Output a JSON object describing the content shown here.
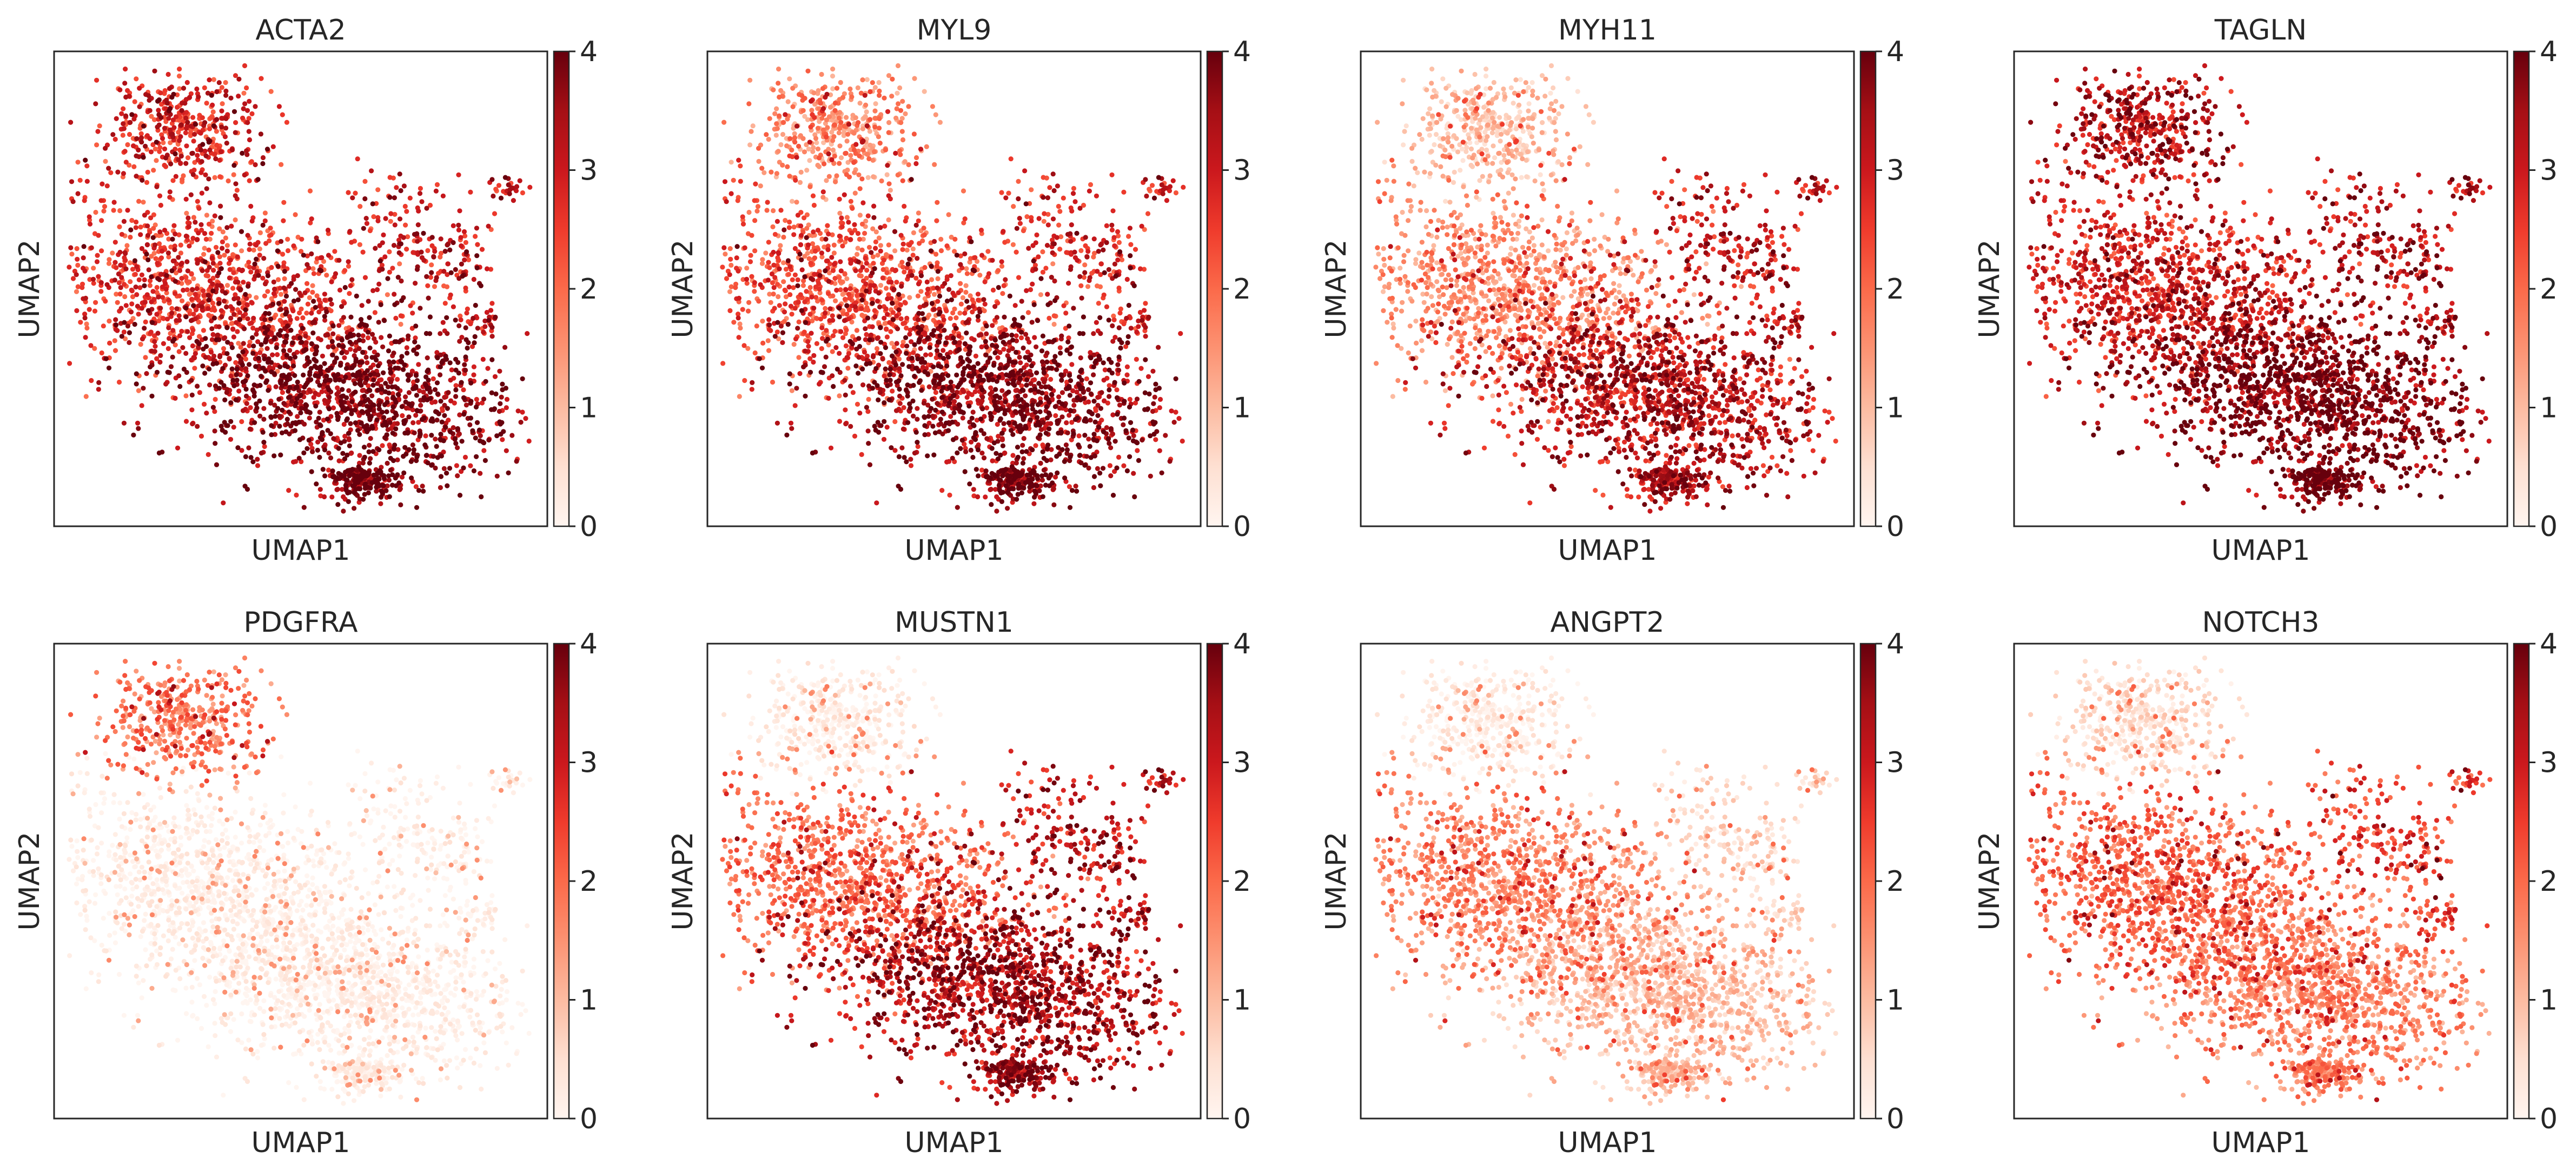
{
  "figure": {
    "colormap": "Reds",
    "colormap_stops": [
      "#fff5f0",
      "#fee0d2",
      "#fcbba1",
      "#fc9272",
      "#fb6a4a",
      "#ef3b2c",
      "#cb181d",
      "#a50f15",
      "#67000d"
    ]
  },
  "chart_data": [
    {
      "type": "scatter",
      "title": "ACTA2",
      "xlabel": "UMAP1",
      "ylabel": "UMAP2",
      "grid": false,
      "legend": "colorbar-right",
      "colorbar": {
        "range": [
          0,
          4
        ],
        "ticks": [
          "0",
          "1",
          "2",
          "3",
          "4"
        ]
      },
      "region_levels": {
        "upper_cluster": 2.8,
        "middle_cluster": 2.6,
        "lower_cluster": 3.7,
        "right_islands": 3.0
      }
    },
    {
      "type": "scatter",
      "title": "MYL9",
      "xlabel": "UMAP1",
      "ylabel": "UMAP2",
      "grid": false,
      "legend": "colorbar-right",
      "colorbar": {
        "range": [
          0,
          4
        ],
        "ticks": [
          "0",
          "1",
          "2",
          "3",
          "4"
        ]
      },
      "region_levels": {
        "upper_cluster": 1.6,
        "middle_cluster": 2.3,
        "lower_cluster": 3.6,
        "right_islands": 2.8
      }
    },
    {
      "type": "scatter",
      "title": "MYH11",
      "xlabel": "UMAP1",
      "ylabel": "UMAP2",
      "grid": false,
      "legend": "colorbar-right",
      "colorbar": {
        "range": [
          0,
          4
        ],
        "ticks": [
          "0",
          "1",
          "2",
          "3",
          "4"
        ]
      },
      "region_levels": {
        "upper_cluster": 0.9,
        "middle_cluster": 1.5,
        "lower_cluster": 3.1,
        "right_islands": 3.0
      }
    },
    {
      "type": "scatter",
      "title": "TAGLN",
      "xlabel": "UMAP1",
      "ylabel": "UMAP2",
      "grid": false,
      "legend": "colorbar-right",
      "colorbar": {
        "range": [
          0,
          4
        ],
        "ticks": [
          "0",
          "1",
          "2",
          "3",
          "4"
        ]
      },
      "region_levels": {
        "upper_cluster": 3.2,
        "middle_cluster": 2.8,
        "lower_cluster": 3.8,
        "right_islands": 3.2
      }
    },
    {
      "type": "scatter",
      "title": "PDGFRA",
      "xlabel": "UMAP1",
      "ylabel": "UMAP2",
      "grid": false,
      "legend": "colorbar-right",
      "colorbar": {
        "range": [
          0,
          4
        ],
        "ticks": [
          "0",
          "1",
          "2",
          "3",
          "4"
        ]
      },
      "region_levels": {
        "upper_cluster": 1.8,
        "middle_cluster": 0.1,
        "lower_cluster": 0.1,
        "right_islands": 0.1
      }
    },
    {
      "type": "scatter",
      "title": "MUSTN1",
      "xlabel": "UMAP1",
      "ylabel": "UMAP2",
      "grid": false,
      "legend": "colorbar-right",
      "colorbar": {
        "range": [
          0,
          4
        ],
        "ticks": [
          "0",
          "1",
          "2",
          "3",
          "4"
        ]
      },
      "region_levels": {
        "upper_cluster": 0.2,
        "middle_cluster": 1.9,
        "lower_cluster": 3.3,
        "right_islands": 3.1
      }
    },
    {
      "type": "scatter",
      "title": "ANGPT2",
      "xlabel": "UMAP1",
      "ylabel": "UMAP2",
      "grid": false,
      "legend": "colorbar-right",
      "colorbar": {
        "range": [
          0,
          4
        ],
        "ticks": [
          "0",
          "1",
          "2",
          "3",
          "4"
        ]
      },
      "region_levels": {
        "upper_cluster": 0.2,
        "middle_cluster": 1.6,
        "lower_cluster": 0.9,
        "right_islands": 0.6
      }
    },
    {
      "type": "scatter",
      "title": "NOTCH3",
      "xlabel": "UMAP1",
      "ylabel": "UMAP2",
      "grid": false,
      "legend": "colorbar-right",
      "colorbar": {
        "range": [
          0,
          4
        ],
        "ticks": [
          "0",
          "1",
          "2",
          "3",
          "4"
        ]
      },
      "region_levels": {
        "upper_cluster": 0.5,
        "middle_cluster": 2.0,
        "lower_cluster": 1.6,
        "right_islands": 2.4
      }
    }
  ]
}
